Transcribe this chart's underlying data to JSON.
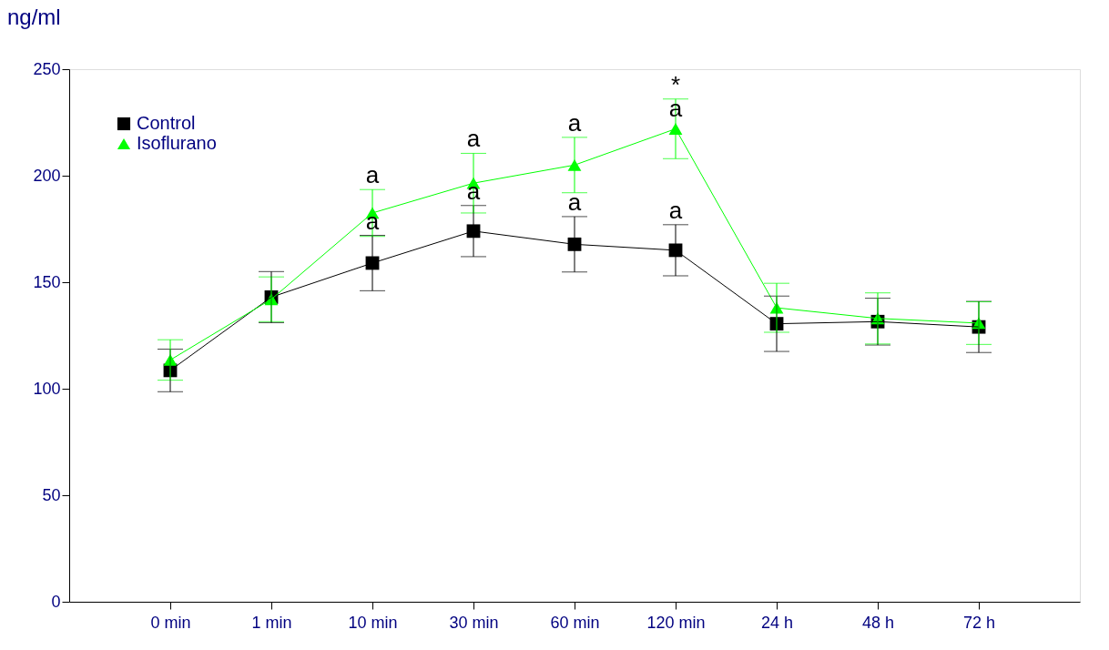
{
  "chart_data": {
    "type": "line",
    "ylabel": "ng/ml",
    "categories": [
      "0 min",
      "1 min",
      "10 min",
      "30 min",
      "60 min",
      "120 min",
      "24 h",
      "48 h",
      "72 h"
    ],
    "series": [
      {
        "name": "Control",
        "color": "#000000",
        "marker": "square",
        "values": [
          108.6,
          143,
          159,
          174,
          167.8,
          165,
          130.5,
          131.5,
          129
        ],
        "errors": [
          10,
          12,
          13,
          12,
          13,
          12,
          13,
          11,
          12
        ],
        "value_labels": [
          null,
          null,
          "a",
          "a",
          "a",
          "a",
          null,
          null,
          null
        ]
      },
      {
        "name": "Isoflurano",
        "color": "#00ff00",
        "marker": "triangle",
        "values": [
          113.5,
          142,
          182.5,
          196.5,
          205,
          222,
          138,
          133,
          130.8
        ],
        "errors": [
          9.5,
          10.5,
          11,
          14,
          13,
          14,
          11.5,
          12,
          10
        ],
        "value_labels": [
          null,
          null,
          "a",
          "a",
          "a",
          "*\na",
          null,
          null,
          null
        ]
      }
    ],
    "ylim": [
      0,
      250
    ],
    "yticks": [
      0,
      50,
      100,
      150,
      200,
      250
    ],
    "grid": false,
    "legend": "top left"
  }
}
